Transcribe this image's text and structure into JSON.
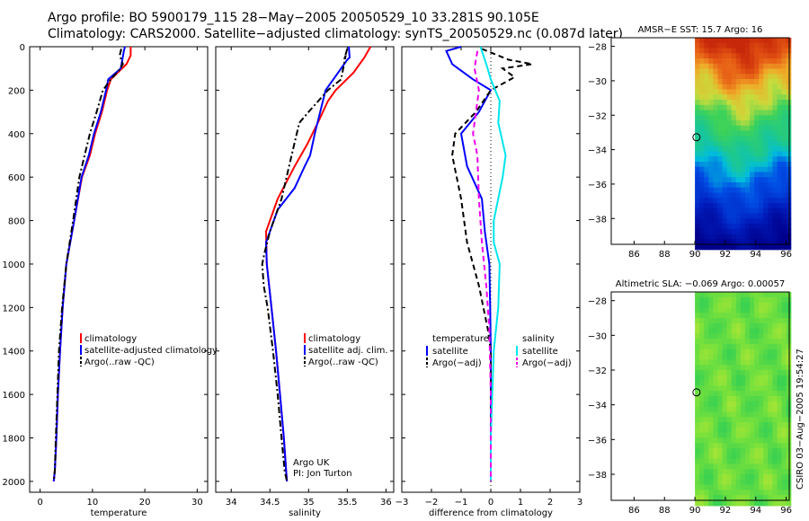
{
  "header": {
    "line1": "Argo profile: BO 5900179_115 28−May−2005 20050529_10 33.281S 90.105E",
    "line2": "Climatology: CARS2000. Satellite−adjusted climatology: synTS_20050529.nc (0.087d later)"
  },
  "credit": {
    "line1": "Argo UK",
    "line2": "PI: Jon Turton"
  },
  "stamp": "CSIRO 03−Aug−2005 19:54:27",
  "colors": {
    "climatology": "#ff0000",
    "satellite": "#0000ff",
    "argo": "#000000",
    "salinity_sat": "#00e5ee",
    "salinity_argo": "#ee00ee"
  },
  "chart_data": [
    {
      "type": "line",
      "id": "temperature",
      "xlabel": "temperature",
      "xlim": [
        -2,
        32
      ],
      "ylim": [
        2050,
        0
      ],
      "y_reversed": true,
      "xticks": [
        0,
        10,
        20,
        30
      ],
      "yticks": [
        0,
        200,
        400,
        600,
        800,
        1000,
        1200,
        1400,
        1600,
        1800,
        2000
      ],
      "series": [
        {
          "name": "climatology",
          "color": "#ff0000",
          "dash": "solid",
          "x": [
            17.3,
            17.3,
            16.5,
            13.5,
            12.8,
            11.8,
            10.5,
            9.5,
            8.0,
            6.5,
            5.0,
            4.3,
            3.8,
            3.4,
            3.1,
            2.8,
            2.6
          ],
          "y": [
            0,
            40,
            80,
            150,
            200,
            300,
            400,
            500,
            600,
            800,
            1000,
            1200,
            1400,
            1600,
            1800,
            1950,
            2000
          ]
        },
        {
          "name": "satellite-adjusted climatology",
          "color": "#0000ff",
          "dash": "solid",
          "x": [
            16.2,
            16.0,
            15.7,
            15.4,
            13.0,
            12.6,
            11.6,
            10.3,
            9.3,
            7.9,
            6.5,
            5.0,
            4.3,
            3.8,
            3.4,
            3.1,
            2.8,
            2.6
          ],
          "y": [
            0,
            20,
            60,
            100,
            150,
            200,
            300,
            400,
            500,
            600,
            800,
            1000,
            1200,
            1400,
            1600,
            1800,
            1950,
            2000
          ]
        },
        {
          "name": "Argo(..raw -QC)",
          "color": "#000000",
          "dash": "dashdot",
          "x": [
            15.5,
            15.2,
            15.8,
            15.0,
            13.5,
            12.0,
            10.8,
            9.5,
            8.5,
            7.5,
            6.3,
            5.0,
            4.2,
            3.6,
            3.3,
            3.0,
            2.8,
            2.6
          ],
          "y": [
            10,
            40,
            80,
            110,
            150,
            200,
            300,
            400,
            500,
            600,
            800,
            1000,
            1200,
            1400,
            1600,
            1800,
            1950,
            2000
          ]
        }
      ],
      "legend": [
        "climatology",
        "satellite-adjusted climatology",
        "Argo(..raw -QC)"
      ]
    },
    {
      "type": "line",
      "id": "salinity",
      "xlabel": "salinity",
      "xlim": [
        33.8,
        36.1
      ],
      "ylim": [
        2050,
        0
      ],
      "y_reversed": true,
      "xticks": [
        34,
        34.5,
        35,
        35.5,
        36
      ],
      "series": [
        {
          "name": "climatology",
          "color": "#ff0000",
          "dash": "solid",
          "x": [
            35.8,
            35.72,
            35.58,
            35.35,
            35.25,
            35.12,
            34.98,
            34.82,
            34.6,
            34.45,
            34.46,
            34.52,
            34.58,
            34.63,
            34.68,
            34.71,
            34.72
          ],
          "y": [
            0,
            50,
            120,
            200,
            250,
            350,
            450,
            550,
            700,
            850,
            1000,
            1200,
            1400,
            1600,
            1800,
            1950,
            2000
          ]
        },
        {
          "name": "satellite adj. clim.",
          "color": "#0000ff",
          "dash": "solid",
          "x": [
            35.52,
            35.53,
            35.5,
            35.32,
            35.22,
            35.15,
            35.08,
            35.02,
            34.95,
            34.82,
            34.6,
            34.45,
            34.46,
            34.52,
            34.58,
            34.63,
            34.68,
            34.71,
            34.72
          ],
          "y": [
            0,
            50,
            60,
            150,
            200,
            300,
            400,
            500,
            550,
            650,
            750,
            900,
            1000,
            1200,
            1400,
            1600,
            1800,
            1950,
            2000
          ]
        },
        {
          "name": "Argo(..raw -QC)",
          "color": "#000000",
          "dash": "dashdot",
          "x": [
            35.5,
            35.46,
            35.48,
            35.42,
            35.25,
            35.0,
            34.88,
            34.78,
            34.65,
            34.5,
            34.43,
            34.4,
            34.42,
            34.47,
            34.54,
            34.6,
            34.65,
            34.69,
            34.72
          ],
          "y": [
            10,
            60,
            40,
            150,
            200,
            300,
            350,
            500,
            700,
            850,
            950,
            1000,
            1100,
            1200,
            1400,
            1600,
            1800,
            1950,
            2000
          ]
        }
      ],
      "legend": [
        "climatology",
        "satellite adj. clim.",
        "Argo(..raw -QC)"
      ]
    },
    {
      "type": "line",
      "id": "difference",
      "xlabel": "difference from climatology",
      "xlim": [
        -3,
        3
      ],
      "ylim": [
        2050,
        0
      ],
      "y_reversed": true,
      "xticks": [
        -3,
        -2,
        -1,
        0,
        1,
        2,
        3
      ],
      "series": [
        {
          "name": "temperature satellite",
          "color": "#0000ff",
          "dash": "solid",
          "x": [
            -1.0,
            -1.5,
            -1.3,
            -0.6,
            0.0,
            -0.4,
            -1.0,
            -0.8,
            -0.3,
            -0.2,
            -0.05,
            -0.02,
            0.0,
            0.0,
            0.0,
            0.0,
            0.0
          ],
          "y": [
            0,
            20,
            80,
            150,
            200,
            300,
            400,
            550,
            700,
            850,
            1000,
            1200,
            1400,
            1600,
            1800,
            1950,
            2000
          ]
        },
        {
          "name": "temperature Argo(-adj)",
          "color": "#000000",
          "dash": "dashed",
          "x": [
            -0.3,
            0.6,
            1.4,
            0.4,
            0.8,
            0.0,
            -0.5,
            -1.2,
            -1.3,
            -1.0,
            -0.8,
            -0.4,
            -0.1,
            0.0,
            0.0,
            0.0,
            0.0,
            0.0
          ],
          "y": [
            10,
            60,
            80,
            100,
            140,
            200,
            300,
            400,
            500,
            700,
            900,
            1100,
            1300,
            1400,
            1600,
            1800,
            1950,
            2000
          ]
        },
        {
          "name": "salinity satellite",
          "color": "#00e5ee",
          "dash": "solid",
          "x": [
            -0.35,
            -0.15,
            0.0,
            0.3,
            0.25,
            0.5,
            0.4,
            0.1,
            0.1,
            0.3,
            0.25,
            0.1,
            0.05,
            0.0,
            0.0
          ],
          "y": [
            0,
            80,
            150,
            250,
            350,
            500,
            600,
            800,
            900,
            1000,
            1200,
            1400,
            1600,
            1800,
            2000
          ]
        },
        {
          "name": "salinity Argo(-adj)",
          "color": "#ee00ee",
          "dash": "dashed",
          "x": [
            -0.45,
            -0.55,
            -0.4,
            -0.6,
            -0.45,
            -0.4,
            -0.3,
            -0.15,
            -0.05,
            0.0,
            0.0
          ],
          "y": [
            20,
            100,
            200,
            400,
            500,
            700,
            900,
            1100,
            1300,
            1600,
            2000
          ]
        }
      ],
      "legend_left_title": "temperature",
      "legend_right_title": "salinity",
      "legend_left": [
        "satellite",
        "Argo(−adj)"
      ],
      "legend_right": [
        "satellite",
        "Argo(−adj)"
      ]
    },
    {
      "type": "heatmap",
      "id": "sst",
      "title": "AMSR−E SST: 15.7 Argo: 16",
      "xlim": [
        84.5,
        96.2
      ],
      "ylim": [
        -39.5,
        -27.5
      ],
      "xticks": [
        86,
        88,
        90,
        92,
        94,
        96
      ],
      "yticks": [
        -28,
        -30,
        -32,
        -34,
        -36,
        -38
      ],
      "data_xmin": 90,
      "marker": {
        "lon": 90.105,
        "lat": -33.281
      }
    },
    {
      "type": "heatmap",
      "id": "sla",
      "title": "Altimetric SLA: −0.069 Argo: 0.00057",
      "xlim": [
        84.5,
        96.2
      ],
      "ylim": [
        -39.5,
        -27.5
      ],
      "xticks": [
        86,
        88,
        90,
        92,
        94,
        96
      ],
      "yticks": [
        -28,
        -30,
        -32,
        -34,
        -36,
        -38
      ],
      "data_xmin": 90,
      "marker": {
        "lon": 90.105,
        "lat": -33.281
      }
    }
  ]
}
